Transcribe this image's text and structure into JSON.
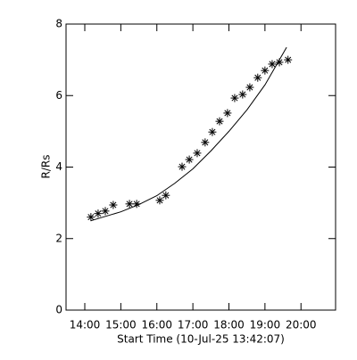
{
  "chart_data": {
    "type": "scatter",
    "xlabel": "Start Time (10-Jul-25 13:42:07)",
    "ylabel": "R/Rs",
    "xlim": [
      13.48,
      20.96
    ],
    "ylim": [
      0,
      8
    ],
    "xticks": [
      {
        "value": 14,
        "label": "14:00"
      },
      {
        "value": 15,
        "label": "15:00"
      },
      {
        "value": 16,
        "label": "16:00"
      },
      {
        "value": 17,
        "label": "17:00"
      },
      {
        "value": 18,
        "label": "18:00"
      },
      {
        "value": 19,
        "label": "19:00"
      },
      {
        "value": 20,
        "label": "20:00"
      }
    ],
    "yticks": [
      0,
      2,
      4,
      6,
      8
    ],
    "color": "#000000",
    "series": [
      {
        "marker": "asterisk",
        "x": [
          14.17,
          14.37,
          14.57,
          14.79,
          15.24,
          15.44,
          16.08,
          16.25,
          16.7,
          16.9,
          17.12,
          17.34,
          17.54,
          17.74,
          17.96,
          18.16,
          18.38,
          18.58,
          18.8,
          19.0,
          19.2,
          19.4,
          19.64
        ],
        "values": [
          2.6,
          2.7,
          2.77,
          2.94,
          2.97,
          2.97,
          3.07,
          3.21,
          4.01,
          4.21,
          4.39,
          4.69,
          4.98,
          5.28,
          5.51,
          5.93,
          6.03,
          6.23,
          6.5,
          6.7,
          6.88,
          6.93,
          7.0
        ]
      },
      {
        "marker": "line",
        "x": [
          14.17,
          14.5,
          15,
          15.5,
          16,
          16.5,
          17,
          17.5,
          18,
          18.5,
          19,
          19.6
        ],
        "values": [
          2.5,
          2.6,
          2.75,
          2.95,
          3.2,
          3.55,
          3.95,
          4.45,
          5.0,
          5.6,
          6.3,
          7.35
        ]
      }
    ]
  }
}
